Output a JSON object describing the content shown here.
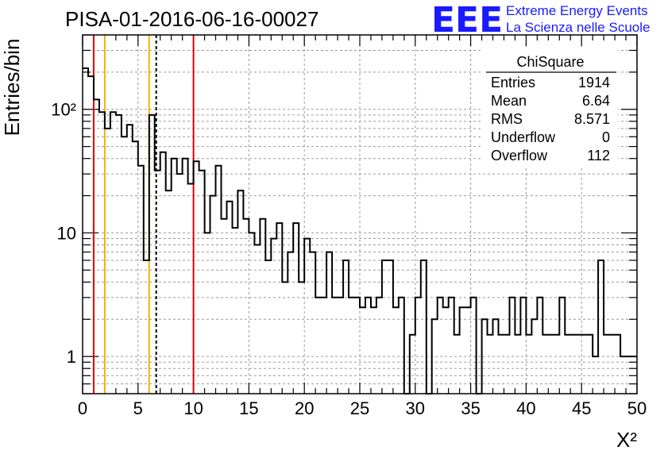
{
  "chart_data": {
    "type": "histogram",
    "title": "PISA-01-2016-06-16-00027",
    "xlabel": "X²",
    "ylabel": "Entries/bin",
    "xlim": [
      0,
      50
    ],
    "ylim": [
      0.5,
      400
    ],
    "log_y": true,
    "grid": true,
    "bin_width": 0.5,
    "x_ticks": [
      0,
      5,
      10,
      15,
      20,
      25,
      30,
      35,
      40,
      45,
      50
    ],
    "y_ticks": [
      {
        "value": 1,
        "label": "1"
      },
      {
        "value": 10,
        "label": "10"
      },
      {
        "value": 100,
        "label": "10²"
      }
    ],
    "values": [
      215,
      185,
      120,
      95,
      70,
      95,
      90,
      60,
      75,
      55,
      35,
      6,
      90,
      32,
      45,
      22,
      40,
      30,
      40,
      25,
      38,
      32,
      10,
      20,
      35,
      13,
      18,
      11,
      22,
      13,
      10,
      8,
      13,
      6,
      9,
      12,
      4,
      7,
      12,
      4,
      9,
      7,
      3,
      3,
      7,
      3,
      3,
      6,
      3,
      3,
      2.5,
      3,
      2.5,
      3,
      6,
      6,
      2.5,
      3,
      0.5,
      1.5,
      3,
      6,
      0,
      2,
      3,
      2.5,
      3,
      1.5,
      2.5,
      2.5,
      3,
      0,
      2,
      1.5,
      2,
      1.5,
      1.5,
      3,
      1.5,
      3,
      1.5,
      2,
      3,
      1.5,
      1.5,
      1.5,
      3,
      1.5,
      1.5,
      1.5,
      1.5,
      1.5,
      1,
      6,
      1.5,
      1.5,
      1.5,
      1,
      1,
      1
    ],
    "reference_lines": [
      {
        "x": 1,
        "color": "#dd0000",
        "style": "solid"
      },
      {
        "x": 2,
        "color": "#f0b400",
        "style": "solid"
      },
      {
        "x": 6,
        "color": "#f0b400",
        "style": "solid"
      },
      {
        "x": 6.64,
        "color": "#000000",
        "style": "dashed"
      },
      {
        "x": 10,
        "color": "#dd0000",
        "style": "solid"
      }
    ],
    "stats_box": {
      "title": "ChiSquare",
      "rows": [
        {
          "label": "Entries",
          "value": "1914"
        },
        {
          "label": "Mean",
          "value": "6.64"
        },
        {
          "label": "RMS",
          "value": "8.571"
        },
        {
          "label": "Underflow",
          "value": "0"
        },
        {
          "label": "Overflow",
          "value": "112"
        }
      ]
    }
  },
  "brand": {
    "logo": "EEE",
    "line1": "Extreme Energy Events",
    "line2": "La Scienza nelle Scuole"
  },
  "colors": {
    "histogram": "#000000",
    "grid": "#999999",
    "brand": "#1a1aff"
  }
}
